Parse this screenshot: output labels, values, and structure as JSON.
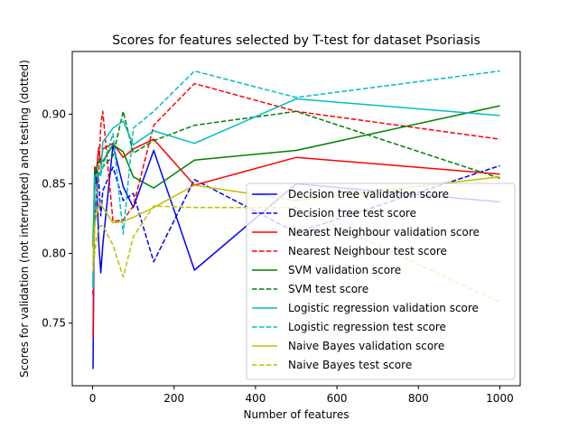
{
  "chart_data": {
    "type": "line",
    "title": "Scores for features selected by T-test for dataset Psoriasis",
    "xlabel": "Number of features",
    "ylabel": "Scores for validation (not interrupted) and testing (dotted)",
    "xlim": [
      -50,
      1050
    ],
    "ylim": [
      0.705,
      0.945
    ],
    "xticks": [
      0,
      200,
      400,
      600,
      800,
      1000
    ],
    "yticks": [
      0.75,
      0.8,
      0.85,
      0.9
    ],
    "ytick_labels": [
      "0.75",
      "0.80",
      "0.85",
      "0.90"
    ],
    "legend_position": "lower right",
    "x": [
      1,
      5,
      10,
      15,
      20,
      25,
      50,
      75,
      100,
      150,
      250,
      500,
      1000
    ],
    "series": [
      {
        "name": "Decision tree validation score",
        "color": "#0000ff",
        "style": "solid",
        "values": [
          0.717,
          0.862,
          0.854,
          0.808,
          0.786,
          0.806,
          0.878,
          0.848,
          0.833,
          0.874,
          0.788,
          0.85,
          0.837
        ]
      },
      {
        "name": "Decision tree test score",
        "color": "#0000ff",
        "style": "dashed",
        "values": [
          0.77,
          0.848,
          0.861,
          0.853,
          0.827,
          0.845,
          0.862,
          0.838,
          0.843,
          0.794,
          0.853,
          0.815,
          0.863
        ]
      },
      {
        "name": "Nearest Neighbour validation score",
        "color": "#ff0000",
        "style": "solid",
        "values": [
          0.739,
          0.862,
          0.861,
          0.876,
          0.864,
          0.875,
          0.879,
          0.869,
          0.875,
          0.882,
          0.849,
          0.869,
          0.857
        ]
      },
      {
        "name": "Nearest Neighbour test score",
        "color": "#ff0000",
        "style": "dashed",
        "values": [
          0.778,
          0.818,
          0.845,
          0.858,
          0.892,
          0.902,
          0.823,
          0.824,
          0.834,
          0.892,
          0.922,
          0.902,
          0.882
        ]
      },
      {
        "name": "SVM validation score",
        "color": "#008000",
        "style": "solid",
        "values": [
          0.805,
          0.858,
          0.862,
          0.866,
          0.867,
          0.866,
          0.878,
          0.873,
          0.855,
          0.847,
          0.867,
          0.874,
          0.906
        ]
      },
      {
        "name": "SVM test score",
        "color": "#008000",
        "style": "dashed",
        "values": [
          0.783,
          0.845,
          0.86,
          0.856,
          0.857,
          0.862,
          0.87,
          0.902,
          0.872,
          0.881,
          0.892,
          0.902,
          0.854
        ]
      },
      {
        "name": "Logistic regression validation score",
        "color": "#00bfbf",
        "style": "solid",
        "values": [
          0.778,
          0.855,
          0.857,
          0.857,
          0.856,
          0.88,
          0.89,
          0.895,
          0.878,
          0.888,
          0.879,
          0.911,
          0.899
        ]
      },
      {
        "name": "Logistic regression test score",
        "color": "#00bfbf",
        "style": "dashed",
        "values": [
          0.775,
          0.828,
          0.838,
          0.857,
          0.859,
          0.862,
          0.886,
          0.814,
          0.89,
          0.902,
          0.931,
          0.912,
          0.931
        ]
      },
      {
        "name": "Naive Bayes validation score",
        "color": "#bfbf00",
        "style": "solid",
        "values": [
          0.793,
          0.82,
          0.828,
          0.834,
          0.837,
          0.833,
          0.822,
          0.823,
          0.826,
          0.833,
          0.849,
          0.838,
          0.855
        ]
      },
      {
        "name": "Naive Bayes test score",
        "color": "#bfbf00",
        "style": "dashed",
        "values": [
          0.788,
          0.8,
          0.812,
          0.818,
          0.82,
          0.82,
          0.806,
          0.783,
          0.812,
          0.834,
          0.833,
          0.833,
          0.765
        ]
      }
    ]
  }
}
